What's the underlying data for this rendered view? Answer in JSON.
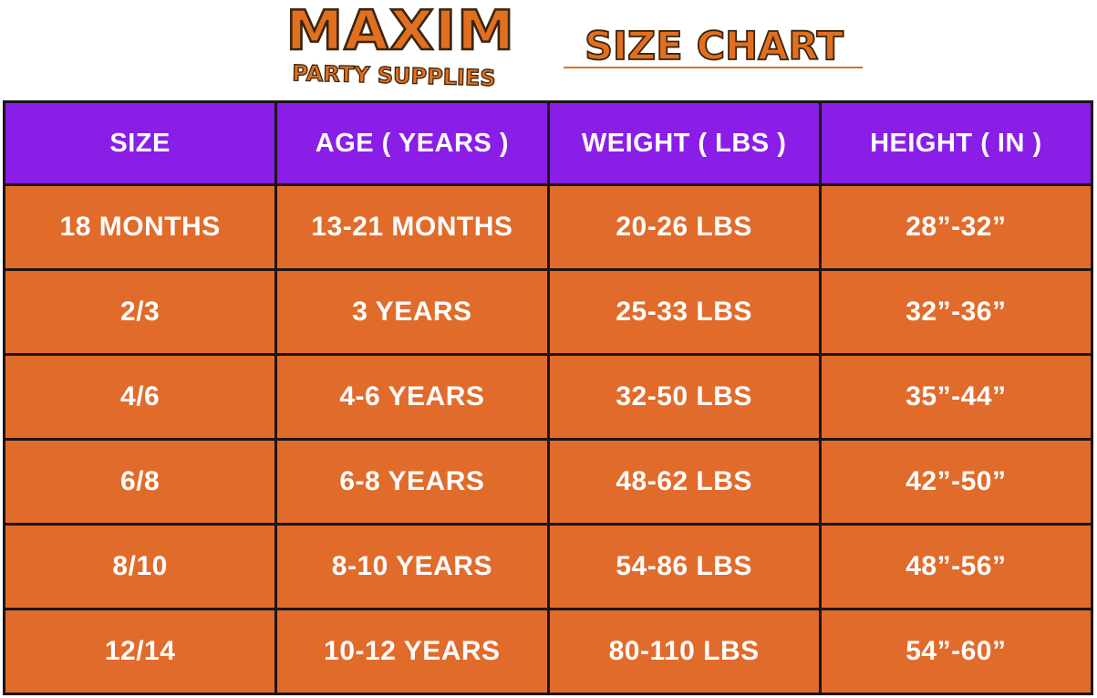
{
  "logo": {
    "brand": "MAXIM",
    "tagline": "PARTY SUPPLIES"
  },
  "title": "SIZE CHART",
  "colors": {
    "header_bg": "#8a1de6",
    "cell_bg": "#e16b2b",
    "border": "#1c1416",
    "accent_orange": "#e07020",
    "text": "#ffffff"
  },
  "table": {
    "headers": [
      "SIZE",
      "AGE ( YEARS )",
      "WEIGHT ( LBS )",
      "HEIGHT ( IN )"
    ],
    "rows": [
      [
        "18 MONTHS",
        "13-21 MONTHS",
        "20-26 LBS",
        "28”-32”"
      ],
      [
        "2/3",
        "3 YEARS",
        "25-33 LBS",
        "32”-36”"
      ],
      [
        "4/6",
        "4-6 YEARS",
        "32-50 LBS",
        "35”-44”"
      ],
      [
        "6/8",
        "6-8 YEARS",
        "48-62 LBS",
        "42”-50”"
      ],
      [
        "8/10",
        "8-10 YEARS",
        "54-86 LBS",
        "48”-56”"
      ],
      [
        "12/14",
        "10-12 YEARS",
        "80-110 LBS",
        "54”-60”"
      ]
    ]
  }
}
